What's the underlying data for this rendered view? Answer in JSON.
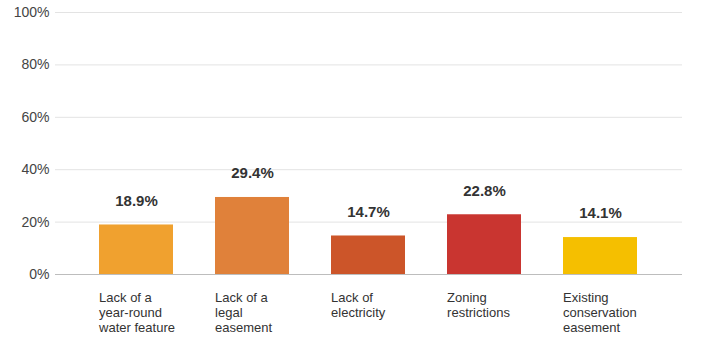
{
  "chart_data": {
    "type": "bar",
    "categories": [
      "Lack of a\nyear-round\nwater feature",
      "Lack of a\nlegal\neasement",
      "Lack of\nelectricity",
      "Zoning\nrestrictions",
      "Existing\nconservation\neasement"
    ],
    "values": [
      18.9,
      29.4,
      14.7,
      22.8,
      14.1
    ],
    "value_labels": [
      "18.9%",
      "29.4%",
      "14.7%",
      "22.8%",
      "14.1%"
    ],
    "colors": [
      "#f0a12f",
      "#e0813a",
      "#cc5529",
      "#c93530",
      "#f5bf00"
    ],
    "ylim": [
      0,
      100
    ],
    "yticks": [
      {
        "value": 0,
        "label": "0%"
      },
      {
        "value": 20,
        "label": "20%"
      },
      {
        "value": 40,
        "label": "40%"
      },
      {
        "value": 60,
        "label": "60%"
      },
      {
        "value": 80,
        "label": "80%"
      },
      {
        "value": 100,
        "label": "100%"
      }
    ],
    "grid": true,
    "data_labels": true
  }
}
